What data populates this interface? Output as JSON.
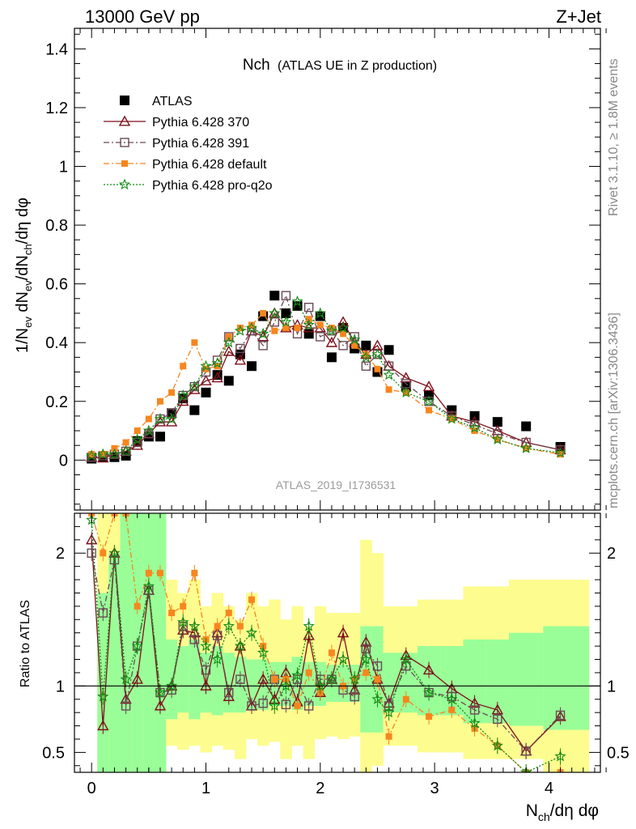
{
  "header": {
    "left": "13000 GeV pp",
    "right": "Z+Jet"
  },
  "side_labels": {
    "rivet": "Rivet 3.1.10, ≥ 1.8M events",
    "mcplots": "mcplots.cern.ch [arXiv:1306.3436]"
  },
  "chart_data": [
    {
      "type": "scatter",
      "panel": "main",
      "title_main": "Nch",
      "title_sub": "(ATLAS UE in Z production)",
      "watermark": "ATLAS_2019_I1736531",
      "ylabel": "1/N_ev dN_ev/dN_ch/dη dφ",
      "xlabel": "N_ch/dη dφ",
      "xlim": [
        -0.15,
        4.45
      ],
      "ylim": [
        -0.17,
        1.47
      ],
      "x_ticks": [
        "0",
        "1",
        "2",
        "3",
        "4"
      ],
      "y_ticks": [
        "0",
        "0.2",
        "0.4",
        "0.6",
        "0.8",
        "1",
        "1.2",
        "1.4"
      ],
      "legend_position": "top-left",
      "x": [
        0.0,
        0.1,
        0.2,
        0.3,
        0.4,
        0.5,
        0.6,
        0.7,
        0.8,
        0.9,
        1.0,
        1.1,
        1.2,
        1.3,
        1.4,
        1.5,
        1.6,
        1.7,
        1.8,
        1.9,
        2.0,
        2.1,
        2.2,
        2.3,
        2.4,
        2.5,
        2.6,
        2.75,
        2.95,
        3.15,
        3.35,
        3.55,
        3.8,
        4.1
      ],
      "series": [
        {
          "name": "ATLAS",
          "style": "data",
          "color": "#000000",
          "marker": "square",
          "values": [
            0.005,
            0.01,
            0.01,
            0.015,
            0.065,
            0.08,
            0.08,
            0.16,
            0.21,
            0.17,
            0.23,
            0.29,
            0.27,
            0.36,
            0.32,
            0.49,
            0.56,
            0.5,
            0.525,
            0.43,
            0.49,
            0.35,
            0.45,
            0.38,
            0.39,
            0.3,
            0.375,
            0.25,
            0.22,
            0.17,
            0.15,
            0.13,
            0.115,
            0.045
          ]
        },
        {
          "name": "Pythia 6.428 370",
          "style": "solid",
          "color": "#7f0f1a",
          "marker": "open-triangle",
          "values": [
            0.01,
            0.007,
            0.02,
            0.03,
            0.05,
            0.09,
            0.13,
            0.13,
            0.2,
            0.24,
            0.27,
            0.28,
            0.37,
            0.34,
            0.44,
            0.42,
            0.5,
            0.45,
            0.46,
            0.45,
            0.45,
            0.4,
            0.47,
            0.4,
            0.36,
            0.39,
            0.32,
            0.28,
            0.25,
            0.15,
            0.13,
            0.1,
            0.06,
            0.035
          ]
        },
        {
          "name": "Pythia 6.428 391",
          "style": "dashdot",
          "color": "#6b4a55",
          "marker": "open-square",
          "values": [
            0.01,
            0.015,
            0.02,
            0.03,
            0.06,
            0.09,
            0.14,
            0.16,
            0.22,
            0.25,
            0.3,
            0.34,
            0.42,
            0.38,
            0.44,
            0.39,
            0.47,
            0.56,
            0.43,
            0.52,
            0.42,
            0.44,
            0.39,
            0.42,
            0.32,
            0.36,
            0.32,
            0.26,
            0.2,
            0.15,
            0.12,
            0.09,
            0.06,
            0.035
          ]
        },
        {
          "name": "Pythia 6.428 default",
          "style": "dashdot",
          "color": "#f7861e",
          "marker": "filled-square",
          "values": [
            0.02,
            0.02,
            0.04,
            0.06,
            0.1,
            0.14,
            0.2,
            0.23,
            0.32,
            0.4,
            0.31,
            0.32,
            0.42,
            0.45,
            0.46,
            0.5,
            0.44,
            0.45,
            0.45,
            0.48,
            0.46,
            0.45,
            0.43,
            0.39,
            0.36,
            0.31,
            0.24,
            0.23,
            0.17,
            0.14,
            0.1,
            0.07,
            0.04,
            0.02
          ]
        },
        {
          "name": "Pythia 6.428 pro-q2o",
          "style": "dotted",
          "color": "#138b13",
          "marker": "star",
          "values": [
            0.015,
            0.02,
            0.02,
            0.03,
            0.07,
            0.1,
            0.14,
            0.14,
            0.22,
            0.25,
            0.32,
            0.33,
            0.4,
            0.44,
            0.45,
            0.43,
            0.5,
            0.47,
            0.54,
            0.46,
            0.5,
            0.44,
            0.45,
            0.41,
            0.35,
            0.36,
            0.29,
            0.23,
            0.2,
            0.14,
            0.11,
            0.07,
            0.04,
            0.025
          ]
        }
      ]
    },
    {
      "type": "scatter",
      "panel": "ratio",
      "ylabel": "Ratio to ATLAS",
      "xlim": [
        -0.15,
        4.45
      ],
      "ylim": [
        0.35,
        2.3
      ],
      "y_ticks": [
        "0.5",
        "1",
        "2"
      ],
      "reference_line": 1,
      "x": [
        0.0,
        0.1,
        0.2,
        0.3,
        0.4,
        0.5,
        0.6,
        0.7,
        0.8,
        0.9,
        1.0,
        1.1,
        1.2,
        1.3,
        1.4,
        1.5,
        1.6,
        1.7,
        1.8,
        1.9,
        2.0,
        2.1,
        2.2,
        2.3,
        2.4,
        2.5,
        2.6,
        2.75,
        2.95,
        3.15,
        3.35,
        3.55,
        3.8,
        4.1
      ],
      "bands": {
        "edges": [
          0.05,
          0.15,
          0.25,
          0.35,
          0.45,
          0.55,
          0.65,
          0.75,
          0.85,
          0.95,
          1.05,
          1.15,
          1.25,
          1.35,
          1.45,
          1.55,
          1.65,
          1.75,
          1.85,
          1.95,
          2.05,
          2.15,
          2.25,
          2.35,
          2.45,
          2.55,
          2.65,
          2.85,
          3.05,
          3.25,
          3.45,
          3.65,
          3.95,
          4.35
        ],
        "green_low": [
          0.35,
          0.35,
          0.35,
          0.35,
          0.35,
          0.35,
          0.75,
          0.8,
          0.75,
          0.8,
          0.78,
          0.8,
          0.8,
          0.82,
          0.82,
          0.85,
          0.85,
          0.82,
          0.85,
          0.85,
          0.88,
          0.88,
          0.88,
          0.65,
          0.65,
          0.8,
          0.8,
          0.78,
          0.78,
          0.72,
          0.72,
          0.7,
          0.67
        ],
        "green_high": [
          1.7,
          2.0,
          2.3,
          2.3,
          2.3,
          2.3,
          1.35,
          1.3,
          1.35,
          1.25,
          1.3,
          1.25,
          1.22,
          1.2,
          1.2,
          1.18,
          1.18,
          1.22,
          1.18,
          1.18,
          1.16,
          1.16,
          1.16,
          1.45,
          1.45,
          1.25,
          1.25,
          1.3,
          1.3,
          1.35,
          1.35,
          1.4,
          1.45
        ],
        "yellow_low": [
          0.35,
          0.35,
          0.35,
          0.35,
          0.35,
          0.35,
          0.55,
          0.52,
          0.55,
          0.5,
          0.55,
          0.52,
          0.45,
          0.6,
          0.55,
          0.58,
          0.45,
          0.55,
          0.45,
          0.6,
          0.62,
          0.6,
          0.62,
          0.35,
          0.4,
          0.55,
          0.55,
          0.5,
          0.5,
          0.45,
          0.45,
          0.45,
          0.35
        ],
        "yellow_high": [
          2.3,
          2.3,
          2.3,
          2.3,
          2.3,
          2.3,
          1.8,
          1.7,
          1.8,
          1.6,
          1.7,
          1.6,
          1.5,
          1.7,
          1.6,
          1.65,
          1.5,
          1.6,
          1.45,
          1.6,
          1.55,
          1.55,
          1.55,
          2.1,
          2.0,
          1.6,
          1.6,
          1.65,
          1.65,
          1.75,
          1.75,
          1.8,
          1.8
        ]
      },
      "series": [
        {
          "name": "Pythia 6.428 370",
          "color": "#7f0f1a",
          "values": [
            2.1,
            0.7,
            2.0,
            0.9,
            1.05,
            1.72,
            0.85,
            1.0,
            1.42,
            1.4,
            1.0,
            1.4,
            0.92,
            1.3,
            0.85,
            1.05,
            0.9,
            1.1,
            0.88,
            1.38,
            0.95,
            1.05,
            1.4,
            0.97,
            1.33,
            1.05,
            0.87,
            1.23,
            1.12,
            0.98,
            0.87,
            0.82,
            0.51,
            0.77
          ]
        },
        {
          "name": "Pythia 6.428 391",
          "color": "#6b4a55",
          "values": [
            2.0,
            1.55,
            1.95,
            0.85,
            1.3,
            1.72,
            0.95,
            0.97,
            1.45,
            1.35,
            1.12,
            1.38,
            0.95,
            1.05,
            0.85,
            0.87,
            1.05,
            0.86,
            1.05,
            0.85,
            1.05,
            1.05,
            0.97,
            0.92,
            1.28,
            1.15,
            0.85,
            1.15,
            0.95,
            0.92,
            0.82,
            0.75,
            0.51,
            0.78
          ]
        },
        {
          "name": "Pythia 6.428 default",
          "color": "#f7861e",
          "values": [
            2.3,
            2.0,
            2.3,
            2.3,
            1.6,
            1.85,
            1.85,
            1.55,
            1.6,
            1.85,
            1.35,
            1.45,
            1.55,
            1.45,
            1.65,
            1.3,
            1.05,
            1.05,
            0.85,
            1.1,
            0.95,
            1.25,
            1.0,
            1.05,
            1.1,
            1.05,
            0.62,
            0.9,
            0.77,
            0.82,
            0.68,
            0.55,
            0.35,
            0.35
          ]
        },
        {
          "name": "Pythia 6.428 pro-q2o",
          "color": "#138b13",
          "values": [
            2.25,
            0.92,
            2.0,
            1.05,
            1.3,
            1.75,
            0.95,
            1.0,
            1.48,
            1.45,
            1.3,
            1.2,
            1.45,
            1.3,
            1.4,
            1.25,
            0.85,
            1.0,
            1.08,
            1.45,
            1.0,
            1.05,
            1.2,
            1.05,
            1.2,
            0.9,
            0.8,
            1.2,
            0.95,
            0.9,
            0.72,
            0.55,
            0.35,
            0.47
          ]
        }
      ]
    }
  ]
}
